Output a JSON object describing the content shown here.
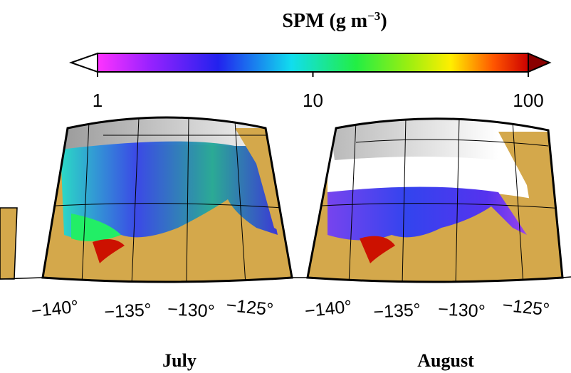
{
  "colorbar": {
    "title": "SPM (g m",
    "title_superscript": "−3",
    "title_suffix": ")",
    "range": [
      1,
      100
    ],
    "scale": "log",
    "ticks": [
      1,
      10,
      100
    ]
  },
  "maps": [
    {
      "label": "July",
      "lon_labels": [
        "−140°",
        "−135°",
        "−130°",
        "−125°"
      ]
    },
    {
      "label": "August",
      "lon_labels": [
        "−140°",
        "−135°",
        "−130°",
        "−125°"
      ]
    }
  ]
}
